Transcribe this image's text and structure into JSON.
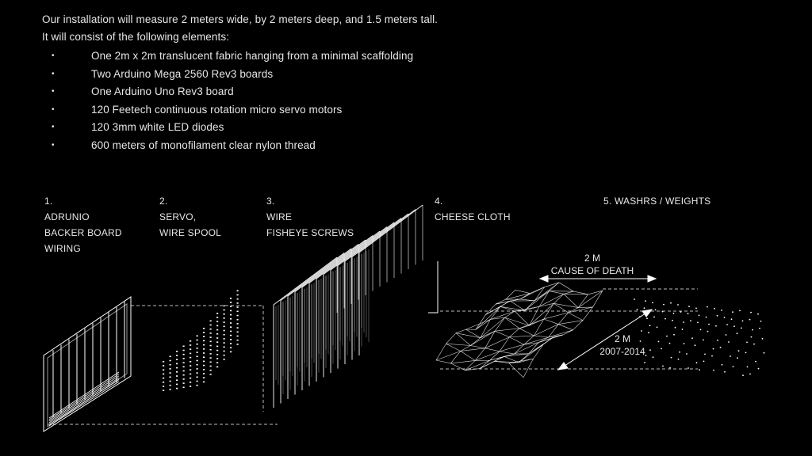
{
  "intro": {
    "line1": "Our installation will measure 2 meters wide, by 2 meters deep, and 1.5 meters tall.",
    "line2": "It will consist of the following elements:",
    "bullet": "•",
    "elements": [
      "One 2m x 2m translucent fabric hanging from a minimal scaffolding",
      "Two Arduino Mega 2560 Rev3 boards",
      "One Arduino Uno Rev3 board",
      "120 Feetech continuous rotation micro servo motors",
      "120 3mm white LED diodes",
      "600 meters of monofilament clear nylon thread"
    ]
  },
  "steps": [
    {
      "number": "1.",
      "lines": [
        "ADRUNIO",
        "BACKER BOARD",
        "WIRING"
      ]
    },
    {
      "number": "2.",
      "lines": [
        "SERVO,",
        "WIRE SPOOL"
      ]
    },
    {
      "number": "3.",
      "lines": [
        "WIRE",
        "FISHEYE SCREWS"
      ]
    },
    {
      "number": "4.",
      "lines": [
        "CHEESE CLOTH"
      ]
    },
    {
      "number": "",
      "lines": [
        "5. WASHRS / WEIGHTS"
      ]
    }
  ],
  "dimensions": {
    "width": {
      "value": "2 M",
      "label": "CAUSE OF DEATH"
    },
    "depth": {
      "value": "2 M",
      "label": "2007-2014"
    }
  },
  "colors": {
    "background": "#000000",
    "line": "#ffffff",
    "text": "#e6e6e6"
  }
}
